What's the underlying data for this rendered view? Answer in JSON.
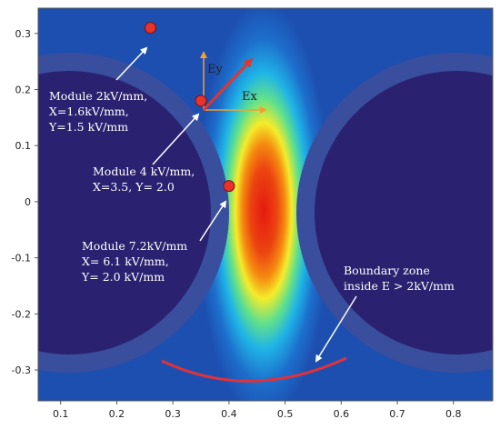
{
  "chart_data": {
    "type": "heatmap",
    "title": "",
    "xlabel": "",
    "ylabel": "",
    "xlim": [
      0.06,
      0.87
    ],
    "ylim": [
      -0.355,
      0.345
    ],
    "x_ticks": [
      {
        "value": 0.1,
        "label": "0.1"
      },
      {
        "value": 0.2,
        "label": "0.2"
      },
      {
        "value": 0.3,
        "label": "0.3"
      },
      {
        "value": 0.4,
        "label": "0.4"
      },
      {
        "value": 0.5,
        "label": "0.5"
      },
      {
        "value": 0.6,
        "label": "0.6"
      },
      {
        "value": 0.7,
        "label": "0.7"
      },
      {
        "value": 0.8,
        "label": "0.8"
      }
    ],
    "y_ticks": [
      {
        "value": 0.3,
        "label": "0.3"
      },
      {
        "value": 0.2,
        "label": "0.2"
      },
      {
        "value": 0.1,
        "label": "0.1"
      },
      {
        "value": 0.0,
        "label": "0"
      },
      {
        "value": -0.1,
        "label": "-0.1"
      },
      {
        "value": -0.2,
        "label": "-0.2"
      },
      {
        "value": -0.3,
        "label": "-0.3"
      }
    ],
    "colormap": [
      "#2a2170",
      "#1d5fc8",
      "#1fb4e6",
      "#3fe0a0",
      "#f4ec2a",
      "#f58a10",
      "#e41a10"
    ],
    "points": [
      {
        "name": "point-module-2",
        "x": 0.26,
        "y": 0.31,
        "lines": [
          "Module 2kV/mm,",
          "X=1.6kV/mm,",
          "Y=1.5 kV/mm"
        ]
      },
      {
        "name": "point-module-4",
        "x": 0.35,
        "y": 0.18,
        "lines": [
          "Module 4 kV/mm,",
          "X=3.5, Y= 2.0"
        ]
      },
      {
        "name": "point-module-7-2",
        "x": 0.4,
        "y": 0.028,
        "lines": [
          "Module 7.2kV/mm",
          "X= 6.1 kV/mm,",
          "Y= 2.0 kV/mm"
        ]
      }
    ],
    "vector_labels": {
      "ex": "Ex",
      "ey": "Ey"
    },
    "boundary_label": [
      "Boundary zone",
      "inside E > 2kV/mm"
    ],
    "colors": {
      "electrode": "#2a2270",
      "insulation": "#3a4e9e",
      "point": "#e8322a",
      "vector_axis": "#f0a030",
      "field_vector": "#e8322a",
      "boundary_arc": "#e0323a",
      "annotation_arrow": "#ffffff"
    }
  }
}
